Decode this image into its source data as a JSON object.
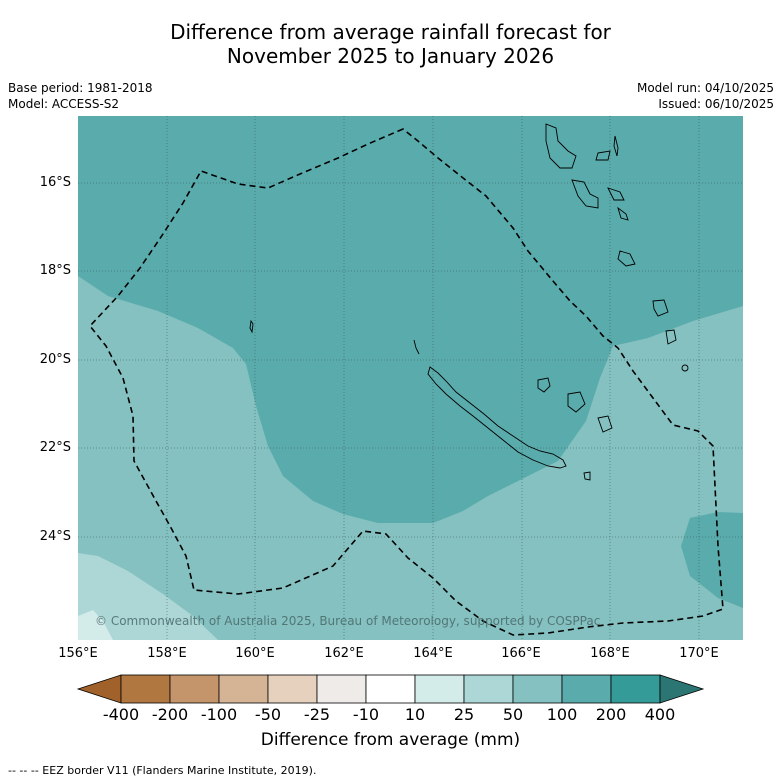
{
  "title_line1": "Difference from average rainfall forecast for",
  "title_line2": "November 2025 to January 2026",
  "base_period": "Base period: 1981-2018",
  "model": "Model: ACCESS-S2",
  "model_run": "Model run: 04/10/2025",
  "issued": "Issued: 06/10/2025",
  "lat_labels": [
    "16°S",
    "18°S",
    "20°S",
    "22°S",
    "24°S"
  ],
  "lon_labels": [
    "156°E",
    "158°E",
    "160°E",
    "162°E",
    "164°E",
    "166°E",
    "168°E",
    "170°E"
  ],
  "colorbar": {
    "tick_labels": [
      "-400",
      "-200",
      "-100",
      "-50",
      "-25",
      "-10",
      "10",
      "25",
      "50",
      "100",
      "200",
      "400"
    ],
    "colors": [
      "#a0622a",
      "#b07840",
      "#c4956a",
      "#d5b395",
      "#e6d1bf",
      "#efebe8",
      "#ffffff",
      "#d3ebe9",
      "#acd7d6",
      "#84c1c0",
      "#5aabac",
      "#349b98",
      "#2b7672"
    ],
    "label": "Difference from average (mm)"
  },
  "copyright": "© Commonwealth of Australia 2025, Bureau of Meteorology, supported by COSPPac",
  "footnote": "--  --  -- EEZ border V11 (Flanders Marine Institute, 2019)."
}
